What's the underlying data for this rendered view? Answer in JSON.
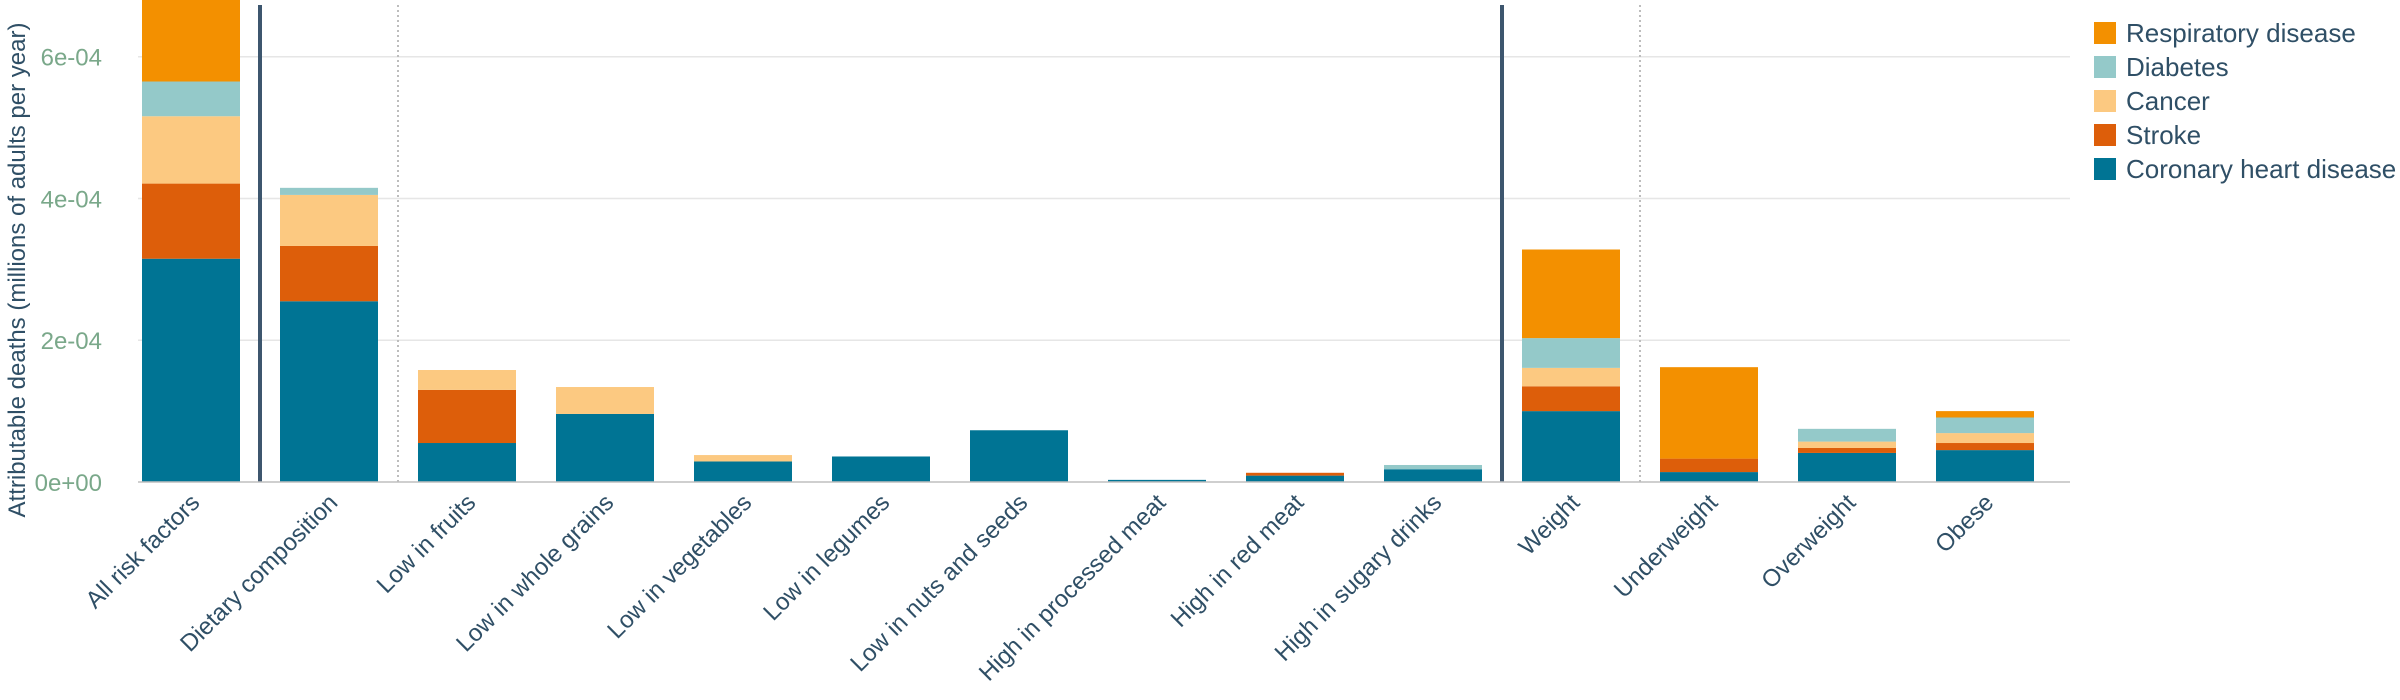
{
  "chart_data": {
    "type": "bar",
    "stacked": true,
    "title": "",
    "xlabel": "",
    "ylabel": "Attributable deaths (millions of adults per year)",
    "ylim": [
      0,
      0.00068
    ],
    "yticks": [
      0,
      0.0002,
      0.0004,
      0.0006
    ],
    "ytick_labels": [
      "0e+00",
      "2e-04",
      "4e-04",
      "6e-04"
    ],
    "grid": true,
    "legend_position": "top-right",
    "categories": [
      "All risk factors",
      "Dietary composition",
      "Low in fruits",
      "Low in whole grains",
      "Low in vegetables",
      "Low in legumes",
      "Low in nuts and seeds",
      "High in processed meat",
      "High in red meat",
      "High in sugary drinks",
      "Weight",
      "Underweight",
      "Overweight",
      "Obese"
    ],
    "series": [
      {
        "name": "Coronary heart disease",
        "color": "#007494",
        "values": [
          0.000315,
          0.000255,
          5.5e-05,
          9.6e-05,
          2.9e-05,
          3.6e-05,
          7.3e-05,
          3e-06,
          9e-06,
          1.8e-05,
          0.0001,
          1.4e-05,
          4.1e-05,
          4.5e-05
        ]
      },
      {
        "name": "Stroke",
        "color": "#dd5e0a",
        "values": [
          0.000106,
          7.8e-05,
          7.5e-05,
          0.0,
          0.0,
          0.0,
          0.0,
          0.0,
          4e-06,
          0.0,
          3.5e-05,
          1.9e-05,
          7e-06,
          1e-05
        ]
      },
      {
        "name": "Cancer",
        "color": "#fcc981",
        "values": [
          9.5e-05,
          7.2e-05,
          2.8e-05,
          3.8e-05,
          9e-06,
          0.0,
          0.0,
          0.0,
          0.0,
          0.0,
          2.6e-05,
          0.0,
          9e-06,
          1.4e-05
        ]
      },
      {
        "name": "Diabetes",
        "color": "#94c9c9",
        "values": [
          4.9e-05,
          1e-05,
          0.0,
          0.0,
          0.0,
          0.0,
          0.0,
          0.0,
          0.0,
          6e-06,
          4.2e-05,
          0.0,
          1.8e-05,
          2.2e-05
        ]
      },
      {
        "name": "Respiratory disease",
        "color": "#f39000",
        "values": [
          0.000123,
          0.0,
          0.0,
          0.0,
          0.0,
          0.0,
          0.0,
          0.0,
          0.0,
          0.0,
          0.000125,
          0.000129,
          0.0,
          9e-06
        ]
      }
    ],
    "legend_order": [
      "Respiratory disease",
      "Diabetes",
      "Cancer",
      "Stroke",
      "Coronary heart disease"
    ],
    "group_separators": {
      "solid_after": [
        0,
        9
      ],
      "dotted_after": [
        1,
        10
      ]
    }
  }
}
